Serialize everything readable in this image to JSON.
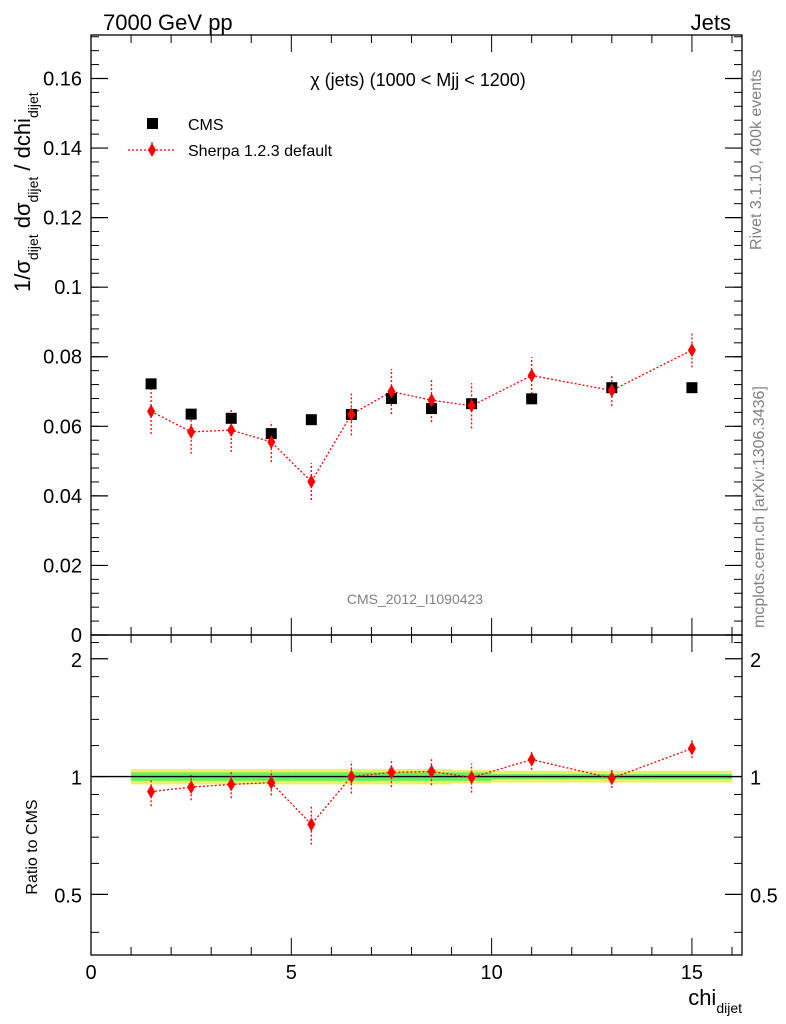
{
  "header": {
    "energy_label": "7000 GeV pp",
    "category_label": "Jets",
    "rivet_label": "Rivet 3.1.10,  400k events",
    "mcplots_label": "mcplots.cern.ch [arXiv:1306.3436]",
    "analysis_label": "CMS_2012_I1090423"
  },
  "chart_data": [
    {
      "type": "scatter",
      "panel": "main",
      "title": "χ (jets) (1000 < Mjj < 1200)",
      "ylabel": {
        "main": "1/σ",
        "sub1": "dijet",
        "mid": " dσ",
        "sub2": "dijet",
        "tail": " / dchi",
        "sub3": "dijet"
      },
      "xlim": [
        0,
        16.25
      ],
      "ylim": [
        0,
        0.1725
      ],
      "yticks": [
        0,
        0.02,
        0.04,
        0.06,
        0.08,
        0.1,
        0.12,
        0.14,
        0.16
      ],
      "ytick_labels": [
        "0",
        "0.02",
        "0.04",
        "0.06",
        "0.08",
        "0.1",
        "0.12",
        "0.14",
        "0.16"
      ],
      "legend_position": "top-left",
      "series": [
        {
          "name": "CMS",
          "marker": "square",
          "color": "#000000",
          "x": [
            1.5,
            2.5,
            3.5,
            4.5,
            5.5,
            6.5,
            7.5,
            8.5,
            9.5,
            11,
            13,
            15
          ],
          "y": [
            0.0722,
            0.0635,
            0.0623,
            0.0579,
            0.0619,
            0.0634,
            0.068,
            0.0651,
            0.0665,
            0.0679,
            0.0711,
            0.0711
          ]
        },
        {
          "name": "Sherpa 1.2.3 default",
          "marker": "diamond",
          "color": "#ff0000",
          "line": "dotted",
          "x": [
            1.5,
            2.5,
            3.5,
            4.5,
            5.5,
            6.5,
            7.5,
            8.5,
            9.5,
            11,
            13,
            15
          ],
          "y": [
            0.0643,
            0.0584,
            0.0589,
            0.0555,
            0.0441,
            0.0634,
            0.07,
            0.0675,
            0.0659,
            0.0746,
            0.0703,
            0.0819
          ],
          "yerr": [
            0.0065,
            0.0063,
            0.0063,
            0.0058,
            0.0053,
            0.006,
            0.0065,
            0.0063,
            0.0065,
            0.0053,
            0.0045,
            0.005
          ]
        }
      ]
    },
    {
      "type": "scatter",
      "panel": "ratio",
      "ylabel": "Ratio to CMS",
      "xlabel": {
        "main": "chi",
        "sub": "dijet"
      },
      "xlim": [
        0,
        16.25
      ],
      "ylim": [
        0.35,
        2.3
      ],
      "xticks": [
        0,
        5,
        10,
        15
      ],
      "xtick_labels": [
        "0",
        "5",
        "10",
        "15"
      ],
      "yticks": [
        0.5,
        1,
        2
      ],
      "ytick_labels": [
        "0.5",
        "1",
        "2"
      ],
      "reference_line": 1,
      "band": {
        "x_edges": [
          1,
          2,
          3,
          4,
          5,
          6,
          7,
          8,
          9,
          10,
          12,
          14,
          16
        ],
        "inner_lo": [
          0.975,
          0.975,
          0.975,
          0.975,
          0.975,
          0.975,
          0.975,
          0.975,
          0.975,
          0.985,
          0.985,
          0.985
        ],
        "inner_hi": [
          1.025,
          1.025,
          1.025,
          1.025,
          1.025,
          1.025,
          1.025,
          1.025,
          1.025,
          1.015,
          1.015,
          1.015
        ],
        "outer_lo": [
          0.955,
          0.955,
          0.955,
          0.955,
          0.955,
          0.955,
          0.955,
          0.955,
          0.96,
          0.965,
          0.965,
          0.965
        ],
        "outer_hi": [
          1.045,
          1.045,
          1.045,
          1.045,
          1.045,
          1.045,
          1.045,
          1.045,
          1.04,
          1.035,
          1.035,
          1.035
        ]
      },
      "series": [
        {
          "name": "Sherpa 1.2.3 default",
          "marker": "diamond",
          "color": "#ff0000",
          "line": "dotted",
          "x": [
            1.5,
            2.5,
            3.5,
            4.5,
            5.5,
            6.5,
            7.5,
            8.5,
            9.5,
            11,
            13,
            15
          ],
          "y": [
            0.915,
            0.94,
            0.955,
            0.965,
            0.755,
            1.0,
            1.025,
            1.03,
            0.995,
            1.105,
            0.99,
            1.18
          ],
          "yerr": [
            0.075,
            0.07,
            0.075,
            0.07,
            0.085,
            0.095,
            0.085,
            0.08,
            0.085,
            0.065,
            0.055,
            0.065
          ]
        }
      ]
    }
  ],
  "colors": {
    "band_inner": "#66ee66",
    "band_outer": "#eeee66",
    "data": "#000000",
    "mc": "#ff0000",
    "annotation": "#808080"
  }
}
